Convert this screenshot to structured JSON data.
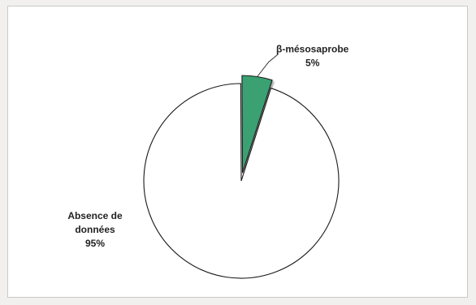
{
  "chart_data": {
    "type": "pie",
    "title": "",
    "slices": [
      {
        "label": "β-mésosaprobe",
        "value": 5,
        "value_label": "5%",
        "color": "#3aa172",
        "exploded": true
      },
      {
        "label_lines": [
          "Absence de",
          "données"
        ],
        "value": 95,
        "value_label": "95%",
        "color": "#ffffff",
        "exploded": false
      }
    ],
    "legend": "none"
  }
}
